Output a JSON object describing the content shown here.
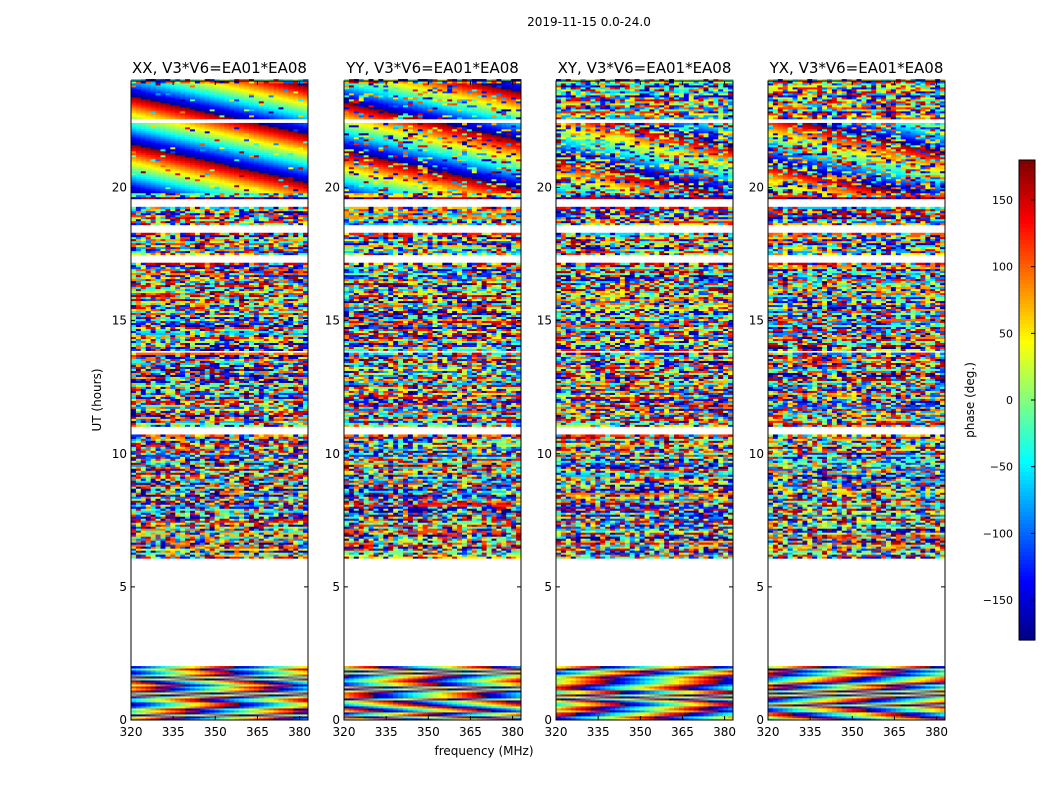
{
  "figure": {
    "suptitle": "2019-11-15 0.0-24.0",
    "xlabel": "frequency (MHz)",
    "ylabel": "UT (hours)",
    "colorbar_label": "phase (deg.)"
  },
  "chart_data": {
    "type": "heatmap",
    "colormap": "jet",
    "value_range": [
      -180,
      180
    ],
    "xlim": [
      320,
      383
    ],
    "ylim": [
      0,
      24
    ],
    "x_ticks": [
      320,
      335,
      350,
      365,
      380
    ],
    "x_tick_labels": [
      "320",
      "335",
      "350",
      "365",
      "380"
    ],
    "y_ticks": [
      0,
      5,
      10,
      15,
      20
    ],
    "y_tick_labels": [
      "0",
      "5",
      "10",
      "15",
      "20"
    ],
    "colorbar_ticks": [
      150,
      100,
      50,
      0,
      -50,
      -100,
      -150
    ],
    "colorbar_tick_labels": [
      "150",
      "100",
      "50",
      "0",
      "−50",
      "−100",
      "−150"
    ],
    "gaps_hours": [
      [
        2.0,
        6.1
      ],
      [
        10.7,
        11.0
      ],
      [
        13.8,
        13.9
      ],
      [
        17.2,
        17.5
      ],
      [
        18.3,
        18.6
      ],
      [
        19.3,
        19.6
      ],
      [
        22.4,
        22.6
      ]
    ],
    "panels": [
      {
        "title": "XX, V3*V6=EA01*EA08",
        "fringe_hours": [
          19.8,
          23.9
        ],
        "fringe_strength": 0.95
      },
      {
        "title": "YY, V3*V6=EA01*EA08",
        "fringe_hours": [
          19.8,
          23.9
        ],
        "fringe_strength": 0.8
      },
      {
        "title": "XY, V3*V6=EA01*EA08",
        "fringe_hours": [
          19.8,
          22.4
        ],
        "fringe_strength": 0.5
      },
      {
        "title": "YX, V3*V6=EA01*EA08",
        "fringe_hours": [
          19.8,
          22.4
        ],
        "fringe_strength": 0.5
      }
    ]
  }
}
